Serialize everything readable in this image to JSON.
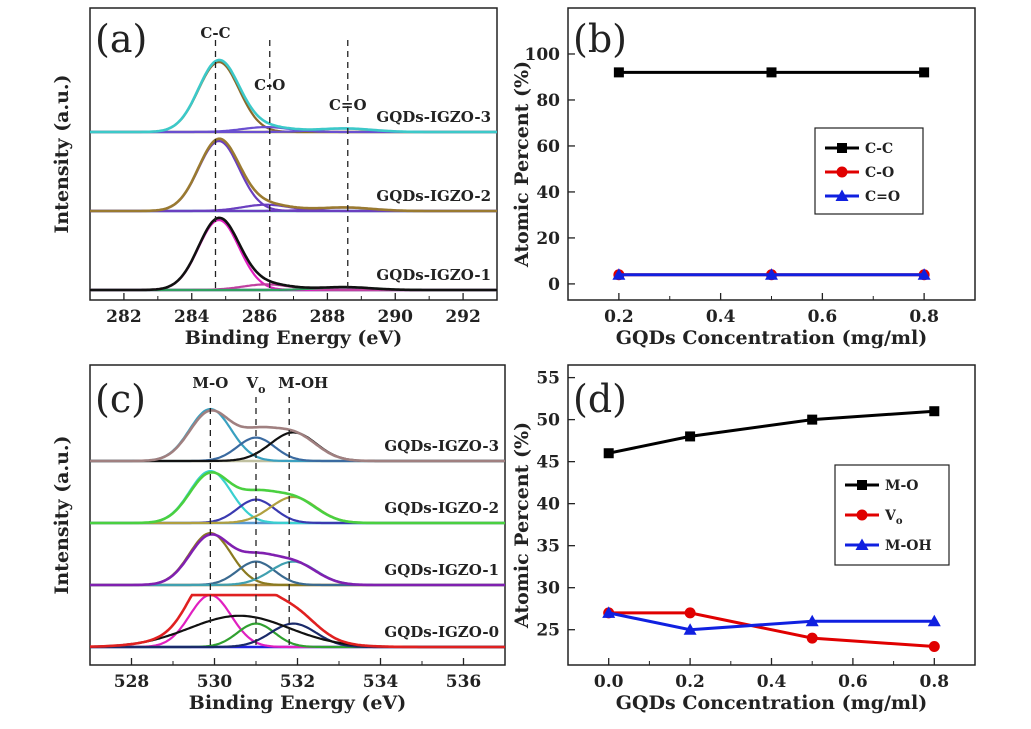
{
  "chart_data": [
    {
      "panel": "(a)",
      "type": "line",
      "xlabel": "Binding Energy (eV)",
      "ylabel": "Intensity (a.u.)",
      "xlim": [
        281,
        293
      ],
      "xticks": [
        282,
        284,
        286,
        288,
        290,
        292
      ],
      "reversed_axis": false,
      "markers": [
        {
          "label": "C-C",
          "x": 284.7
        },
        {
          "label": "C-O",
          "x": 286.3
        },
        {
          "label": "C=O",
          "x": 288.6
        }
      ],
      "spectra": [
        {
          "name": "GQDs-IGZO-3",
          "envelope": "#3cc9c9",
          "baseline": "#a8a040",
          "peaks": [
            {
              "center": 284.8,
              "width": 0.6,
              "height": 1.0,
              "color": "#8a6a2a"
            },
            {
              "center": 286.2,
              "width": 0.7,
              "height": 0.07,
              "color": "#6a4fd0"
            },
            {
              "center": 288.5,
              "width": 0.8,
              "height": 0.05,
              "color": "#6a4fd0"
            }
          ]
        },
        {
          "name": "GQDs-IGZO-2",
          "envelope": "#9a7a30",
          "baseline": "#3aa0b0",
          "peaks": [
            {
              "center": 284.8,
              "width": 0.6,
              "height": 1.0,
              "color": "#6a3fc0"
            },
            {
              "center": 286.2,
              "width": 0.7,
              "height": 0.09,
              "color": "#6a3fc0"
            },
            {
              "center": 288.5,
              "width": 0.8,
              "height": 0.05,
              "color": "#6a3fc0"
            }
          ]
        },
        {
          "name": "GQDs-IGZO-1",
          "envelope": "#111111",
          "baseline": "#1a2a6a",
          "peaks": [
            {
              "center": 284.8,
              "width": 0.6,
              "height": 1.0,
              "color": "#e020c0"
            },
            {
              "center": 286.2,
              "width": 0.7,
              "height": 0.08,
              "color": "#c040a0"
            },
            {
              "center": 288.5,
              "width": 0.8,
              "height": 0.04,
              "color": "#30a060"
            }
          ]
        }
      ]
    },
    {
      "panel": "(b)",
      "type": "line",
      "xlabel": "GQDs Concentration (mg/ml)",
      "ylabel": "Atomic Percent (%)",
      "xlim": [
        0.1,
        0.9
      ],
      "ylim": [
        -7,
        120
      ],
      "xticks": [
        0.2,
        0.4,
        0.6,
        0.8
      ],
      "yticks": [
        0,
        20,
        40,
        60,
        80,
        100
      ],
      "x": [
        0.2,
        0.5,
        0.8
      ],
      "legend_position": "right",
      "series": [
        {
          "name": "C-C",
          "values": [
            92,
            92,
            92
          ],
          "color": "#000000",
          "marker": "square"
        },
        {
          "name": "C-O",
          "values": [
            4,
            4,
            4
          ],
          "color": "#e00000",
          "marker": "circle"
        },
        {
          "name": "C=O",
          "values": [
            4,
            4,
            4
          ],
          "color": "#1020e0",
          "marker": "triangle"
        }
      ]
    },
    {
      "panel": "(c)",
      "type": "line",
      "xlabel": "Binding Energy (eV)",
      "ylabel": "Intensity (a.u.)",
      "xlim": [
        527,
        537
      ],
      "xticks": [
        528,
        530,
        532,
        534,
        536
      ],
      "reversed_axis": false,
      "markers": [
        {
          "label": "M-O",
          "x": 529.9
        },
        {
          "label": "V",
          "sub": "o",
          "x": 531.0
        },
        {
          "label": "M-OH",
          "x": 531.8
        }
      ],
      "spectra": [
        {
          "name": "GQDs-IGZO-3",
          "envelope": "#a08080",
          "baseline": "#c0c0a0",
          "peaks": [
            {
              "center": 529.9,
              "width": 0.5,
              "height": 1.0,
              "color": "#3aa0c0"
            },
            {
              "center": 531.0,
              "width": 0.45,
              "height": 0.45,
              "color": "#3a6aa0"
            },
            {
              "center": 531.9,
              "width": 0.55,
              "height": 0.55,
              "color": "#111111"
            }
          ]
        },
        {
          "name": "GQDs-IGZO-2",
          "envelope": "#4ad040",
          "baseline": "#5a9ad0",
          "peaks": [
            {
              "center": 529.9,
              "width": 0.5,
              "height": 1.0,
              "color": "#3ad0d0"
            },
            {
              "center": 531.0,
              "width": 0.45,
              "height": 0.45,
              "color": "#3a3ab0"
            },
            {
              "center": 531.9,
              "width": 0.55,
              "height": 0.5,
              "color": "#b0a040"
            }
          ]
        },
        {
          "name": "GQDs-IGZO-1",
          "envelope": "#8020b0",
          "baseline": "#b08a40",
          "peaks": [
            {
              "center": 529.9,
              "width": 0.5,
              "height": 1.0,
              "color": "#8a7a20"
            },
            {
              "center": 531.0,
              "width": 0.45,
              "height": 0.45,
              "color": "#3a6a90"
            },
            {
              "center": 531.9,
              "width": 0.55,
              "height": 0.45,
              "color": "#40a0b0"
            }
          ]
        },
        {
          "name": "GQDs-IGZO-0",
          "envelope": "#e02020",
          "baseline": "#2020e0",
          "peaks": [
            {
              "center": 529.9,
              "width": 0.5,
              "height": 1.0,
              "color": "#e020c0"
            },
            {
              "center": 531.0,
              "width": 0.45,
              "height": 0.45,
              "color": "#30a030"
            },
            {
              "center": 531.9,
              "width": 0.55,
              "height": 0.45,
              "color": "#1a2a6a"
            },
            {
              "center": 530.6,
              "width": 1.2,
              "height": 0.6,
              "color": "#111111"
            }
          ]
        }
      ]
    },
    {
      "panel": "(d)",
      "type": "line",
      "xlabel": "GQDs Concentration (mg/ml)",
      "ylabel": "Atomic Percent (%)",
      "xlim": [
        -0.1,
        0.9
      ],
      "ylim": [
        20.8,
        56.5
      ],
      "xticks": [
        0.0,
        0.2,
        0.4,
        0.6,
        0.8
      ],
      "yticks": [
        25,
        30,
        35,
        40,
        45,
        50,
        55
      ],
      "x": [
        0.0,
        0.2,
        0.5,
        0.8
      ],
      "legend_position": "right",
      "series": [
        {
          "name": "M-O",
          "values": [
            46,
            48,
            50,
            51
          ],
          "color": "#000000",
          "marker": "square"
        },
        {
          "name": "V",
          "sub": "o",
          "values": [
            27,
            27,
            24,
            23
          ],
          "color": "#e00000",
          "marker": "circle"
        },
        {
          "name": "M-OH",
          "values": [
            27,
            25,
            26,
            26
          ],
          "color": "#1020e0",
          "marker": "triangle"
        }
      ]
    }
  ]
}
